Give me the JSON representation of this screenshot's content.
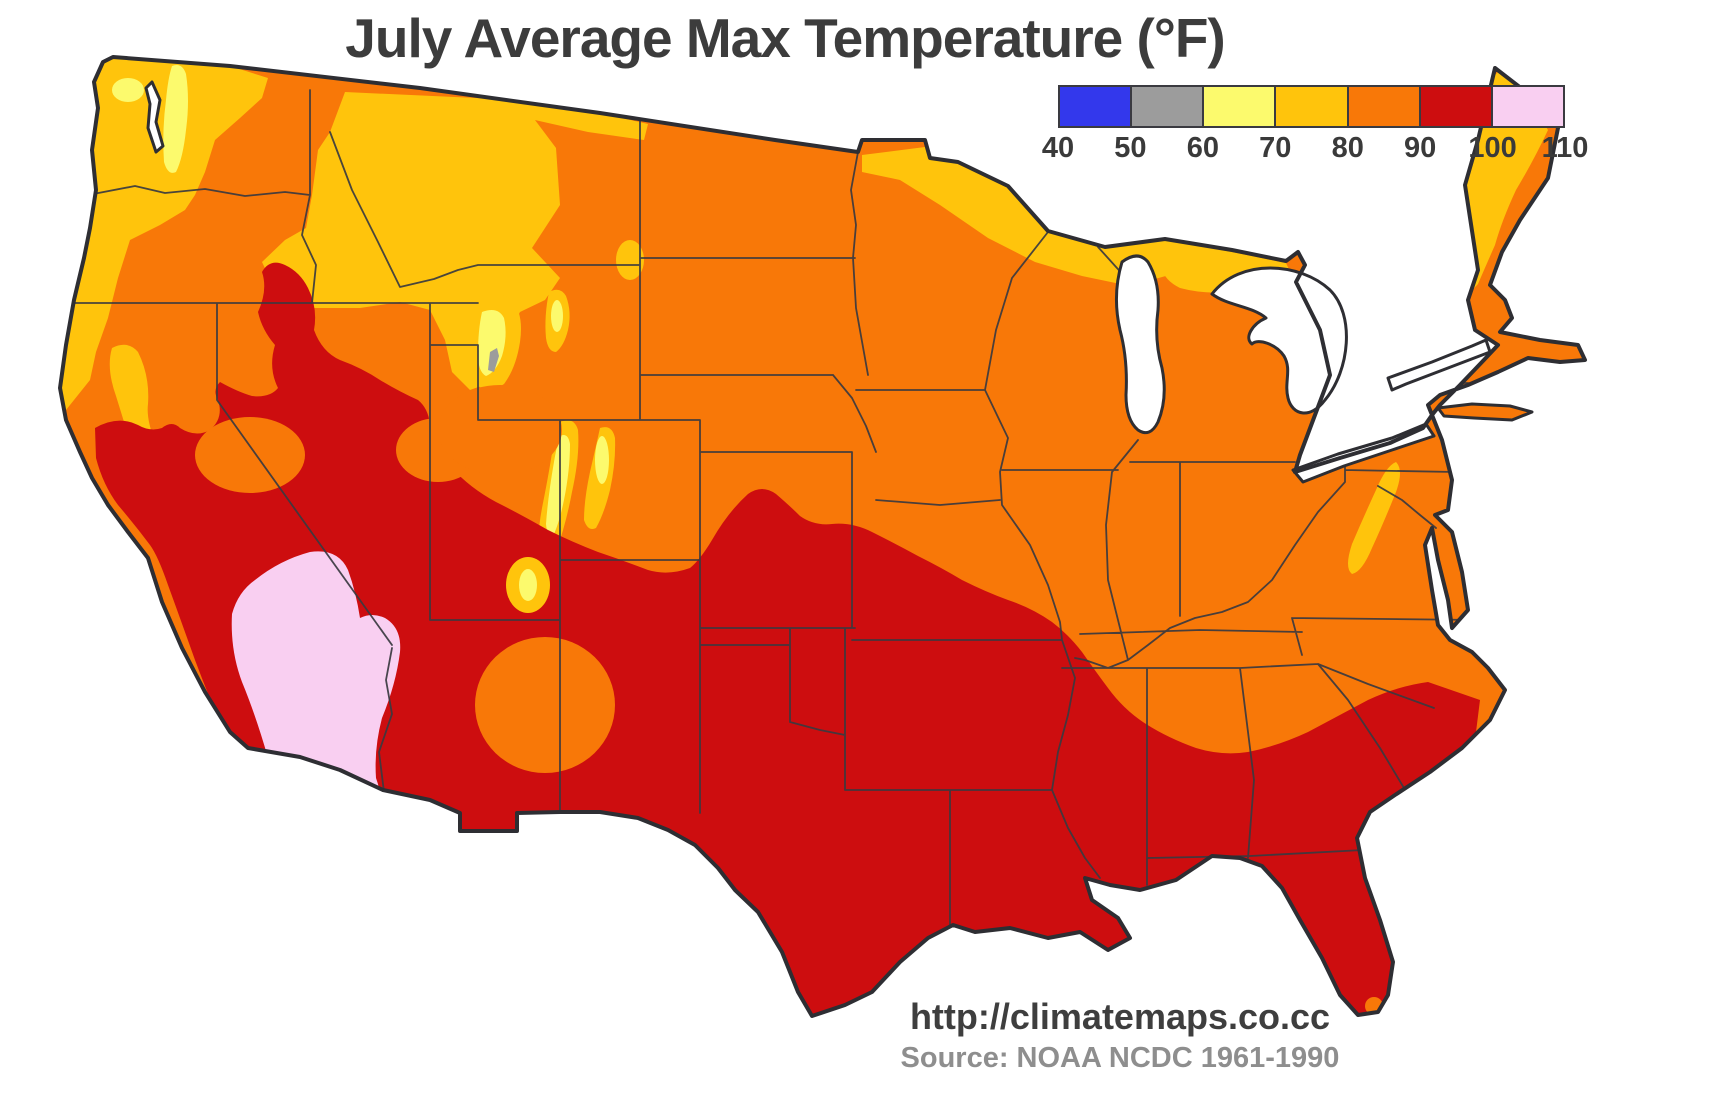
{
  "title": "July Average Max Temperature (°F)",
  "legend": {
    "tick_labels": [
      "40",
      "50",
      "60",
      "70",
      "80",
      "90",
      "100",
      "110"
    ],
    "bins": [
      {
        "range": "40-50",
        "color": "#3338EC"
      },
      {
        "range": "50-60",
        "color": "#9C9C9C"
      },
      {
        "range": "60-70",
        "color": "#FCFA6D"
      },
      {
        "range": "70-80",
        "color": "#FFC40C"
      },
      {
        "range": "80-90",
        "color": "#F87808"
      },
      {
        "range": "90-100",
        "color": "#CD0D0F"
      },
      {
        "range": "100-110",
        "color": "#F9CFF1"
      }
    ]
  },
  "map": {
    "region": "Contiguous United States",
    "bands_visible": [
      {
        "range_f": "50-60",
        "areas": "tiny high-mountain sliver in Wyoming"
      },
      {
        "range_f": "60-70",
        "areas": "Olympics, Cascades, Sierra Nevada, Wyoming and Colorado Rockies cores"
      },
      {
        "range_f": "70-80",
        "areas": "Pacific Northwest coast, northern Rockies, Lake Superior shore, northern New England, Appalachian ridge"
      },
      {
        "range_f": "80-90",
        "areas": "most of the central and eastern United States"
      },
      {
        "range_f": "90-100",
        "areas": "Desert Southwest, Texas, southern Plains, Gulf South, Florida"
      },
      {
        "range_f": "100-110",
        "areas": "southwestern Arizona and lower Colorado River valley"
      }
    ],
    "water_color": "#ffffff",
    "outline_color": "#2e2e33"
  },
  "footer": {
    "url": "http://climatemaps.co.cc",
    "source": "Source: NOAA NCDC 1961-1990"
  }
}
